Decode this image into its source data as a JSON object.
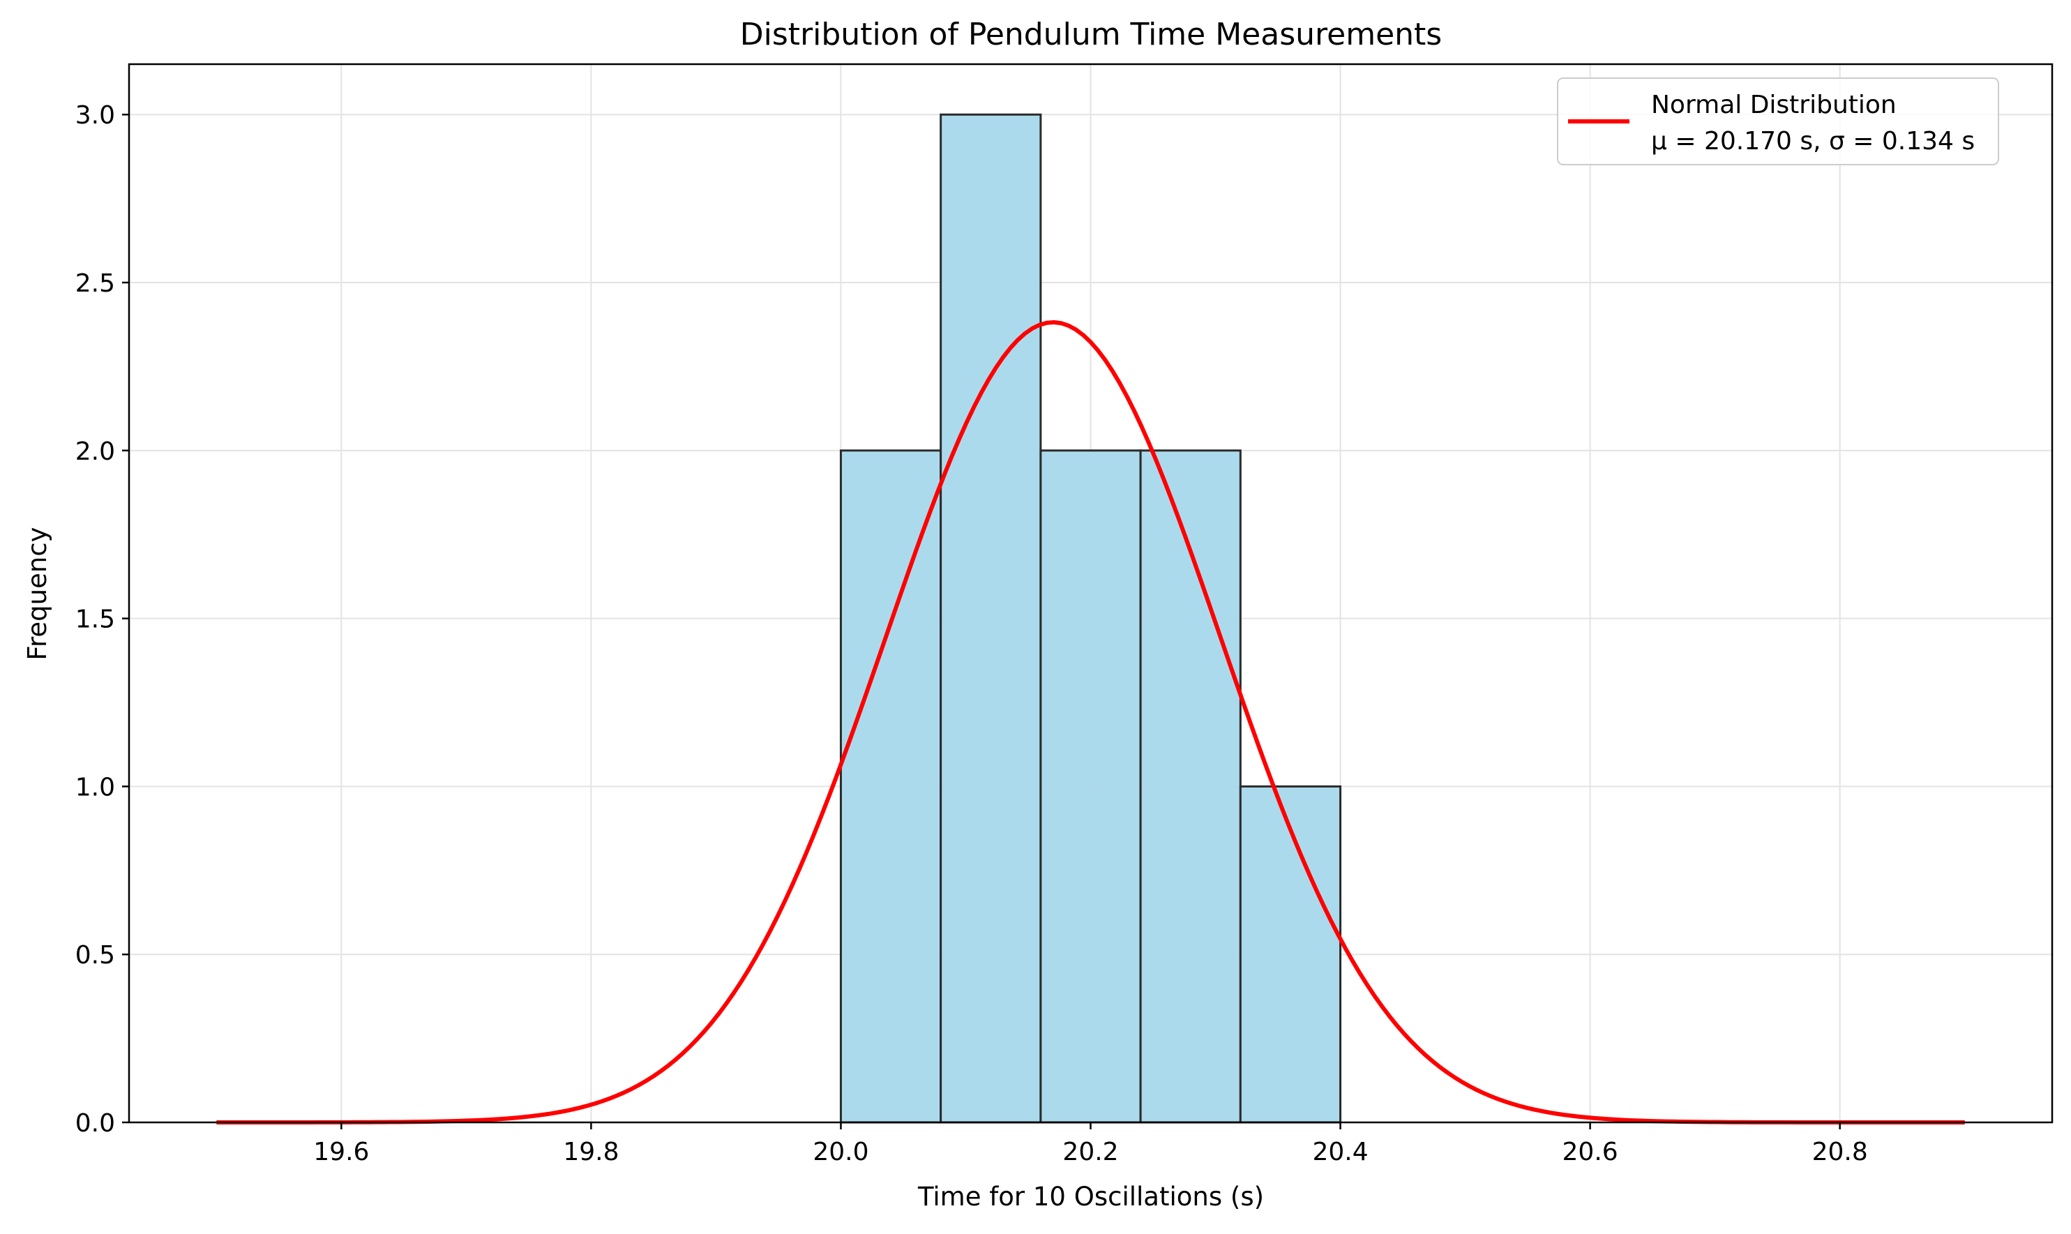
{
  "chart_data": {
    "type": "histogram",
    "title": "Distribution of Pendulum Time Measurements",
    "xlabel": "Time for 10 Oscillations (s)",
    "ylabel": "Frequency",
    "xlim": [
      19.43,
      20.97
    ],
    "ylim": [
      0,
      3.15
    ],
    "xticks": [
      19.6,
      19.8,
      20.0,
      20.2,
      20.4,
      20.6,
      20.8
    ],
    "xtick_labels": [
      "19.6",
      "19.8",
      "20.0",
      "20.2",
      "20.4",
      "20.6",
      "20.8"
    ],
    "yticks": [
      0.0,
      0.5,
      1.0,
      1.5,
      2.0,
      2.5,
      3.0
    ],
    "ytick_labels": [
      "0.0",
      "0.5",
      "1.0",
      "1.5",
      "2.0",
      "2.5",
      "3.0"
    ],
    "grid": true,
    "bins": [
      {
        "start": 20.0,
        "end": 20.08,
        "count": 2
      },
      {
        "start": 20.08,
        "end": 20.16,
        "count": 3
      },
      {
        "start": 20.16,
        "end": 20.24,
        "count": 2
      },
      {
        "start": 20.24,
        "end": 20.32,
        "count": 2
      },
      {
        "start": 20.32,
        "end": 20.4,
        "count": 1
      }
    ],
    "bar_color": "#a8d8ec",
    "bar_edge_color": "#2b2b2b",
    "curve": {
      "name": "Normal Distribution",
      "mu": 20.17,
      "sigma": 0.134,
      "scale": 0.8,
      "x_range": [
        19.5,
        20.9
      ],
      "color": "#ff0000"
    },
    "legend": {
      "position": "top-right",
      "entries": [
        {
          "line1": "Normal Distribution",
          "line2": "μ = 20.170 s, σ = 0.134 s",
          "color": "#ff0000"
        }
      ]
    }
  }
}
